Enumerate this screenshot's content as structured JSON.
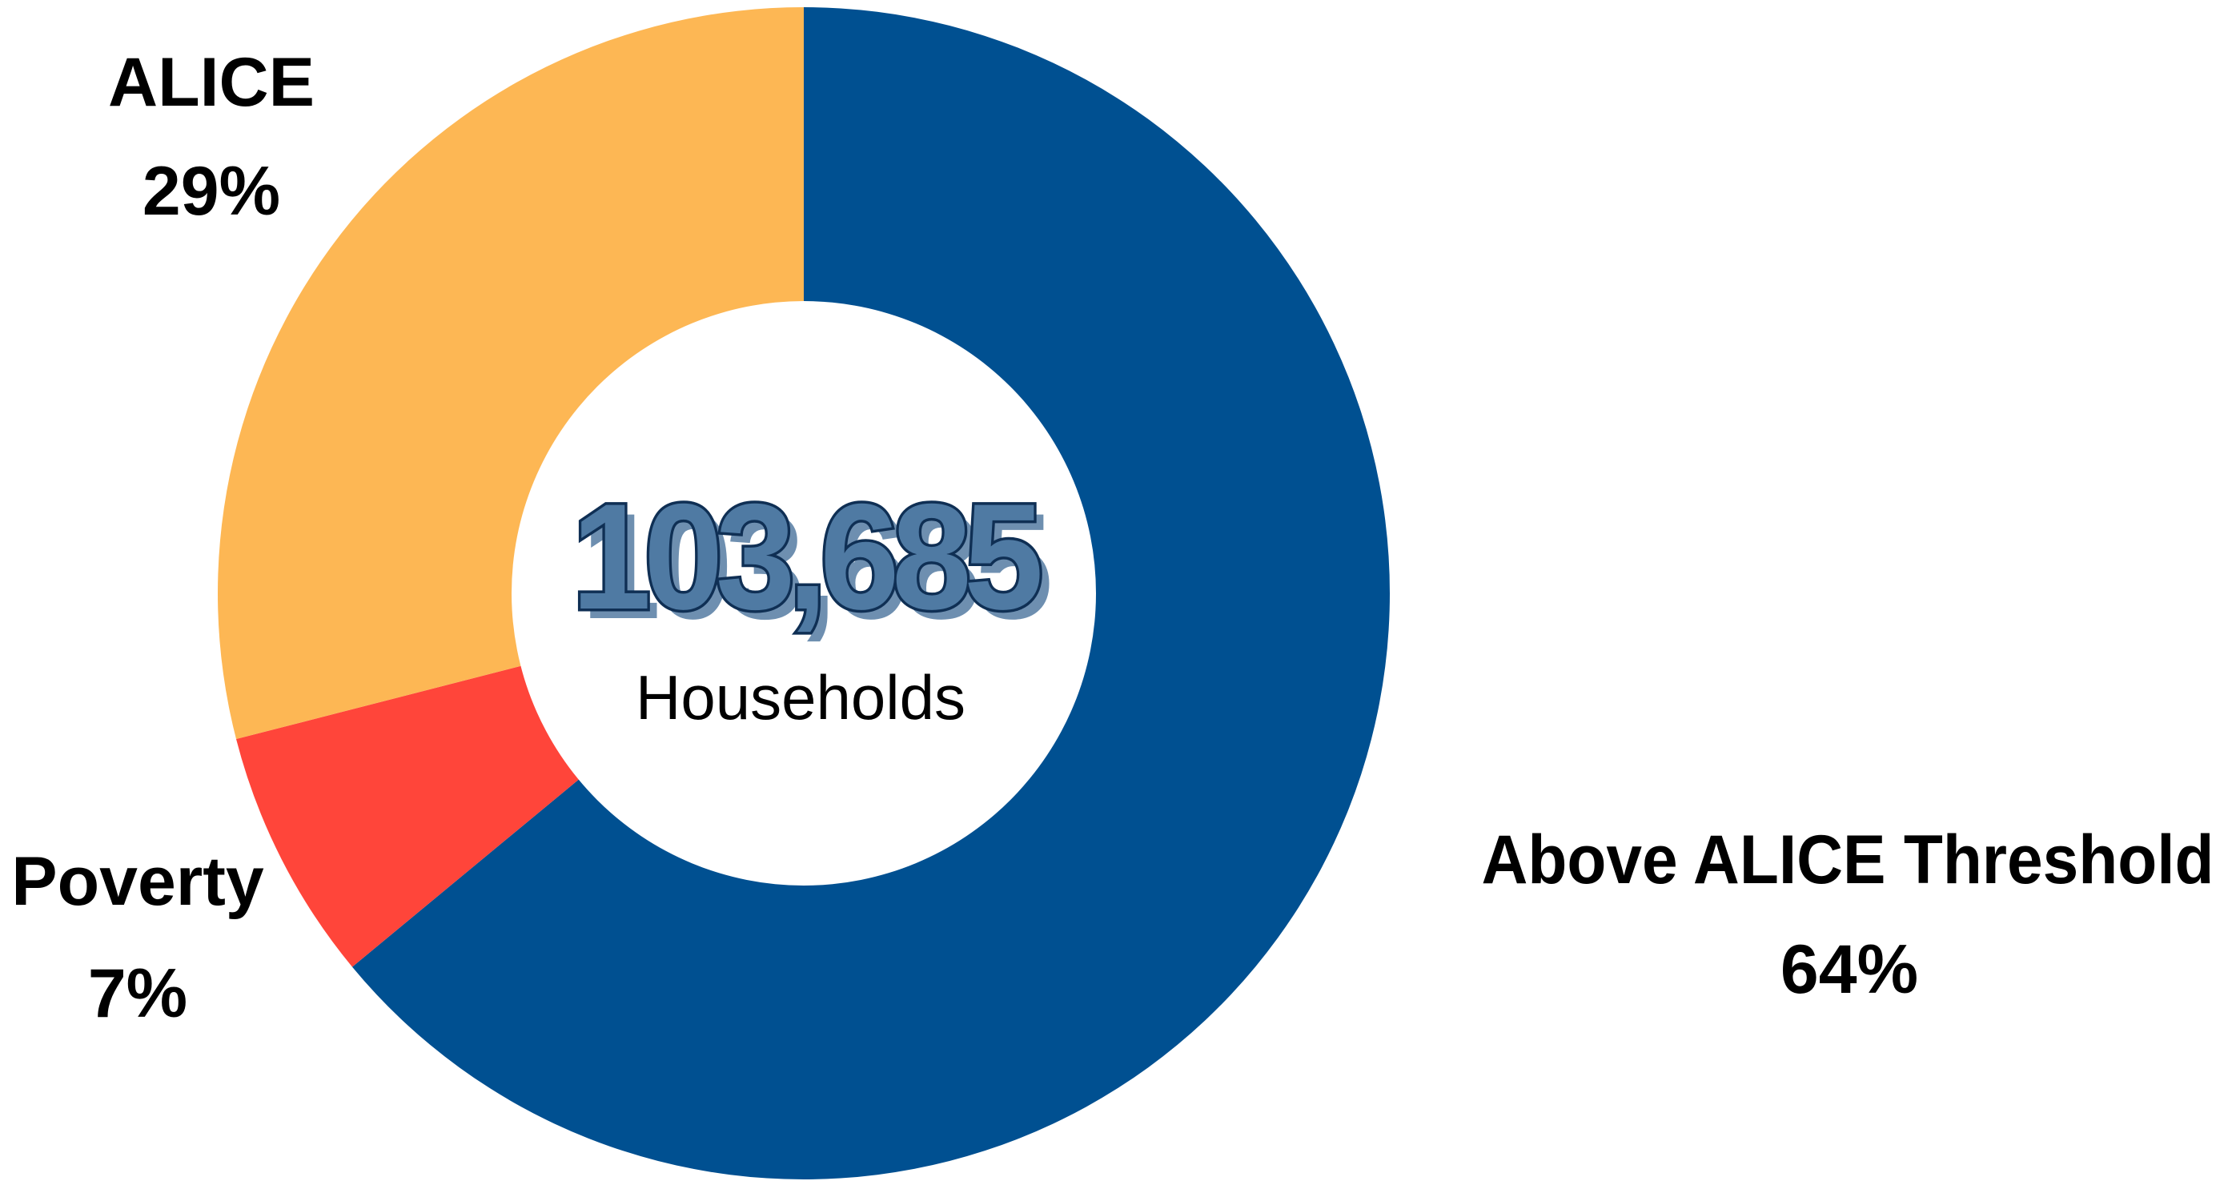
{
  "chart_data": {
    "type": "pie",
    "categories": [
      "Above ALICE Threshold",
      "Poverty",
      "ALICE"
    ],
    "values": [
      64,
      7,
      29
    ],
    "unit": "%",
    "colors": [
      "#005091",
      "#ff453a",
      "#fdb754"
    ],
    "labels": [
      {
        "name": "Above ALICE Threshold",
        "value": "64%"
      },
      {
        "name": "Poverty",
        "value": "7%"
      },
      {
        "name": "ALICE",
        "value": "29%"
      }
    ],
    "center": {
      "total": "103,685",
      "unit": "Households"
    },
    "legend": "none"
  }
}
